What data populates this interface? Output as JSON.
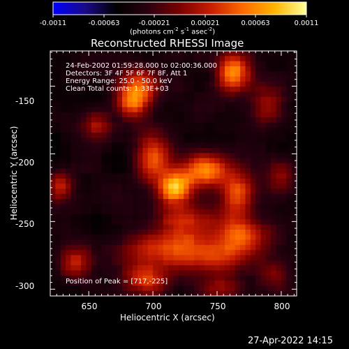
{
  "chart_data": {
    "type": "heatmap",
    "title": "Reconstructed RHESSI Image",
    "xlabel": "Heliocentric X (arcsec)",
    "ylabel": "Heliocentric Y (arcsec)",
    "xlim": [
      620,
      812
    ],
    "ylim": [
      -305,
      -124
    ],
    "x_ticks": [
      "650",
      "700",
      "750",
      "800"
    ],
    "y_ticks": [
      "-150",
      "-200",
      "-250",
      "-300"
    ],
    "colorbar": {
      "range": [
        -0.0011,
        0.0011
      ],
      "tick_labels": [
        "-0.0011",
        "-0.00063",
        "-0.00021",
        "0.00021",
        "0.00063",
        "0.0011"
      ],
      "units_label": "(photons cm",
      "units_exp1": "-2",
      "units_mid1": " s",
      "units_exp2": "-1",
      "units_mid2": " asec",
      "units_exp3": "-2",
      "units_end": ")",
      "colors": [
        "#0000ff",
        "#1a0a8a",
        "#000000",
        "#2a0010",
        "#7a0000",
        "#c81e00",
        "#ff6a00",
        "#ffb400",
        "#ffff9a"
      ]
    },
    "annotations": {
      "time": "24-Feb-2002 01:59:28.000 to 02:00:36.000",
      "detectors": "Detectors: 3F 4F 5F 6F 7F 8F, Att 1",
      "energy": "Energy Range: 25.0 - 50.0 keV",
      "clean": "Clean     Total counts: 1.33E+03",
      "peak": "Position of Peak = [717,-225]"
    },
    "peaks": [
      {
        "x": 717,
        "y": -225,
        "amp": 1.0,
        "sx": 9,
        "sy": 8
      },
      {
        "x": 740,
        "y": -212,
        "amp": 0.8,
        "sx": 12,
        "sy": 9
      },
      {
        "x": 700,
        "y": -203,
        "amp": 0.7,
        "sx": 10,
        "sy": 13
      },
      {
        "x": 683,
        "y": -162,
        "amp": 0.6,
        "sx": 9,
        "sy": 8
      },
      {
        "x": 690,
        "y": -150,
        "amp": 0.55,
        "sx": 11,
        "sy": 9
      },
      {
        "x": 762,
        "y": -140,
        "amp": 0.85,
        "sx": 9,
        "sy": 10
      },
      {
        "x": 766,
        "y": -230,
        "amp": 0.6,
        "sx": 9,
        "sy": 14
      },
      {
        "x": 770,
        "y": -260,
        "amp": 0.55,
        "sx": 14,
        "sy": 9
      },
      {
        "x": 728,
        "y": -250,
        "amp": 0.45,
        "sx": 18,
        "sy": 10
      },
      {
        "x": 705,
        "y": -270,
        "amp": 0.55,
        "sx": 20,
        "sy": 10
      },
      {
        "x": 748,
        "y": -275,
        "amp": 0.5,
        "sx": 20,
        "sy": 10
      },
      {
        "x": 695,
        "y": -293,
        "amp": 0.5,
        "sx": 14,
        "sy": 8
      },
      {
        "x": 640,
        "y": -280,
        "amp": 0.45,
        "sx": 10,
        "sy": 9
      },
      {
        "x": 628,
        "y": -223,
        "amp": 0.5,
        "sx": 7,
        "sy": 8
      },
      {
        "x": 655,
        "y": -178,
        "amp": 0.35,
        "sx": 8,
        "sy": 8
      },
      {
        "x": 790,
        "y": -165,
        "amp": 0.45,
        "sx": 10,
        "sy": 10
      },
      {
        "x": 800,
        "y": -215,
        "amp": 0.35,
        "sx": 8,
        "sy": 10
      },
      {
        "x": 755,
        "y": -300,
        "amp": 0.35,
        "sx": 14,
        "sy": 6
      },
      {
        "x": 795,
        "y": -290,
        "amp": 0.3,
        "sx": 8,
        "sy": 8
      }
    ],
    "noise": 0.4,
    "background": -0.12
  },
  "timestamp": "27-Apr-2022 14:15"
}
